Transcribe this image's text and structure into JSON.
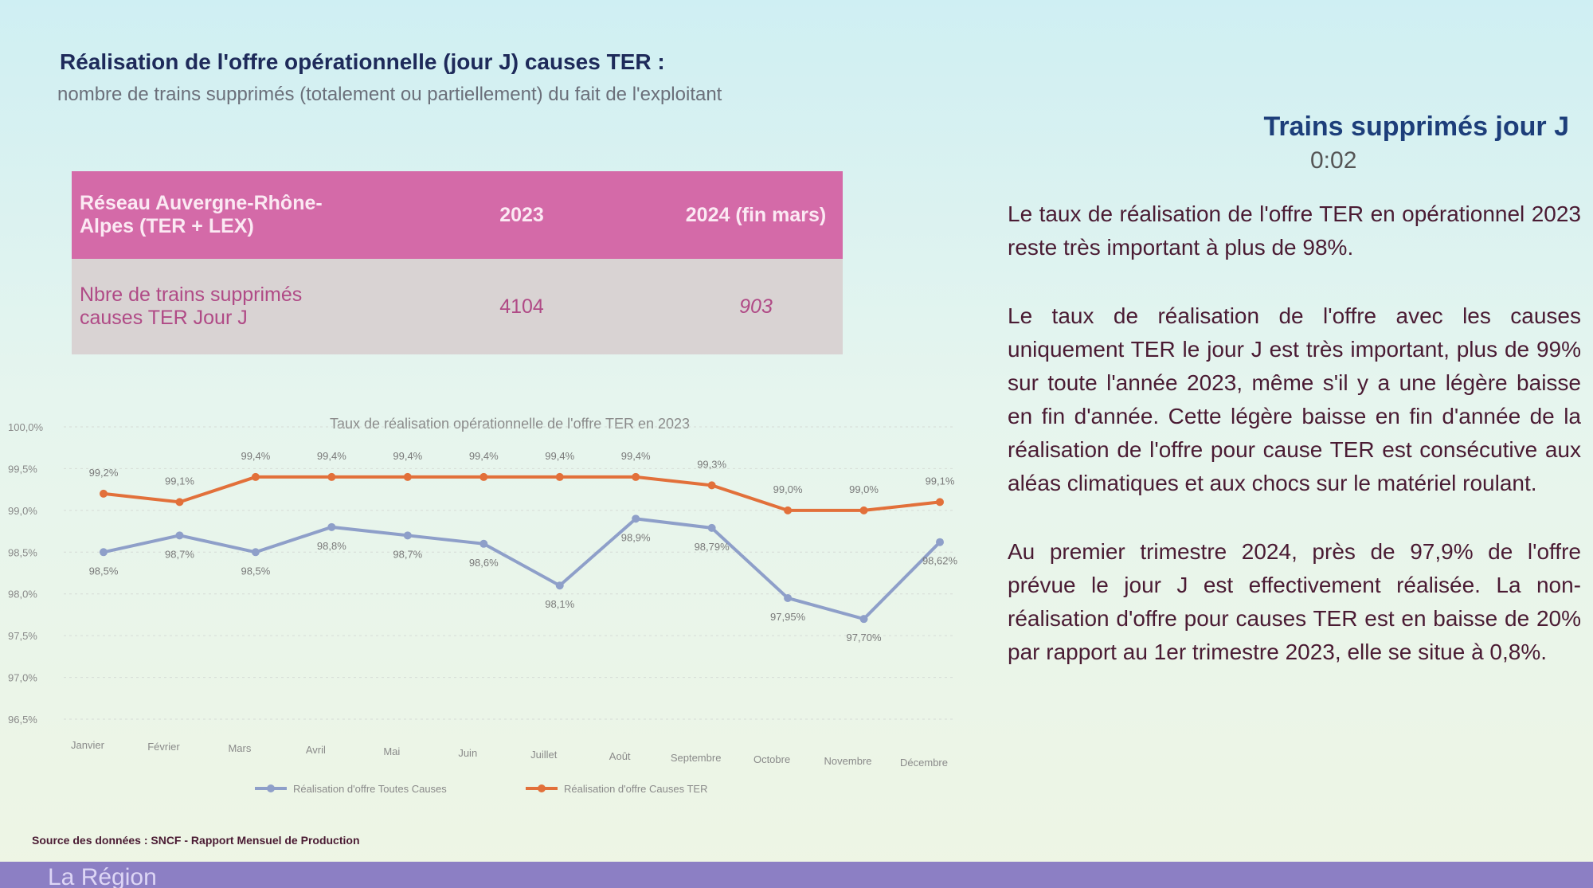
{
  "header": {
    "title": "Réalisation de l'offre opérationnelle (jour J) causes TER :",
    "subtitle": "nombre de trains supprimés (totalement ou partiellement) du fait de l'exploitant",
    "right_title": "Trains supprimés jour J",
    "timer": "0:02"
  },
  "table": {
    "header": [
      "Réseau Auvergne-Rhône-Alpes (TER + LEX)",
      "2023",
      "2024 (fin mars)"
    ],
    "rows": [
      [
        "Nbre de trains supprimés causes TER Jour J",
        4104,
        903
      ]
    ]
  },
  "chart_data": {
    "type": "line",
    "title": "Taux de réalisation opérationnelle de l'offre TER en 2023",
    "categories": [
      "Janvier",
      "Février",
      "Mars",
      "Avril",
      "Mai",
      "Juin",
      "Juillet",
      "Août",
      "Septembre",
      "Octobre",
      "Novembre",
      "Décembre"
    ],
    "series": [
      {
        "name": "Réalisation d'offre Toutes Causes",
        "color": "#8e9fc9",
        "values": [
          98.5,
          98.7,
          98.5,
          98.8,
          98.7,
          98.6,
          98.1,
          98.9,
          98.79,
          97.95,
          97.7,
          98.62
        ],
        "value_labels": [
          "98,5%",
          "98,7%",
          "98,5%",
          "98,8%",
          "98,7%",
          "98,6%",
          "98,1%",
          "98,9%",
          "98,79%",
          "97,95%",
          "97,70%",
          "98,62%"
        ]
      },
      {
        "name": "Réalisation d'offre Causes TER",
        "color": "#e2703a",
        "values": [
          99.2,
          99.1,
          99.4,
          99.4,
          99.4,
          99.4,
          99.4,
          99.4,
          99.3,
          99.0,
          99.0,
          99.1
        ],
        "value_labels": [
          "99,2%",
          "99,1%",
          "99,4%",
          "99,4%",
          "99,4%",
          "99,4%",
          "99,4%",
          "99,4%",
          "99,3%",
          "99,0%",
          "99,0%",
          "99,1%"
        ]
      }
    ],
    "ylim": [
      96.5,
      100
    ],
    "yticks": [
      {
        "value": 96.5,
        "label": "96,5%"
      },
      {
        "value": 97,
        "label": "97,0%"
      },
      {
        "value": 97.5,
        "label": "97,5%"
      },
      {
        "value": 98,
        "label": "98,0%"
      },
      {
        "value": 98.5,
        "label": "98,5%"
      },
      {
        "value": 99,
        "label": "99,0%"
      },
      {
        "value": 99.5,
        "label": "99,5%"
      },
      {
        "value": 100,
        "label": "100,0%"
      }
    ],
    "grid": true,
    "legend": "bottom"
  },
  "text": {
    "paragraphs": [
      "Le taux de réalisation de l'offre TER en opérationnel 2023 reste très important à plus de 98%.",
      "Le taux de réalisation de l'offre avec les causes uniquement TER le jour J est très important, plus de 99% sur toute l'année 2023, même s'il y a une légère baisse en fin d'année. Cette légère baisse en fin d'année de la réalisation de l'offre pour cause TER est consécutive aux aléas climatiques et aux chocs sur le matériel roulant.",
      "Au premier trimestre 2024, près de 97,9% de l'offre prévue le jour J est effectivement réalisée. La non-réalisation d'offre pour causes TER est en baisse de 20% par rapport au 1er trimestre 2023, elle se situe à 0,8%."
    ]
  },
  "source": "Source des données : SNCF - Rapport Mensuel de Production",
  "footer": "La Région"
}
